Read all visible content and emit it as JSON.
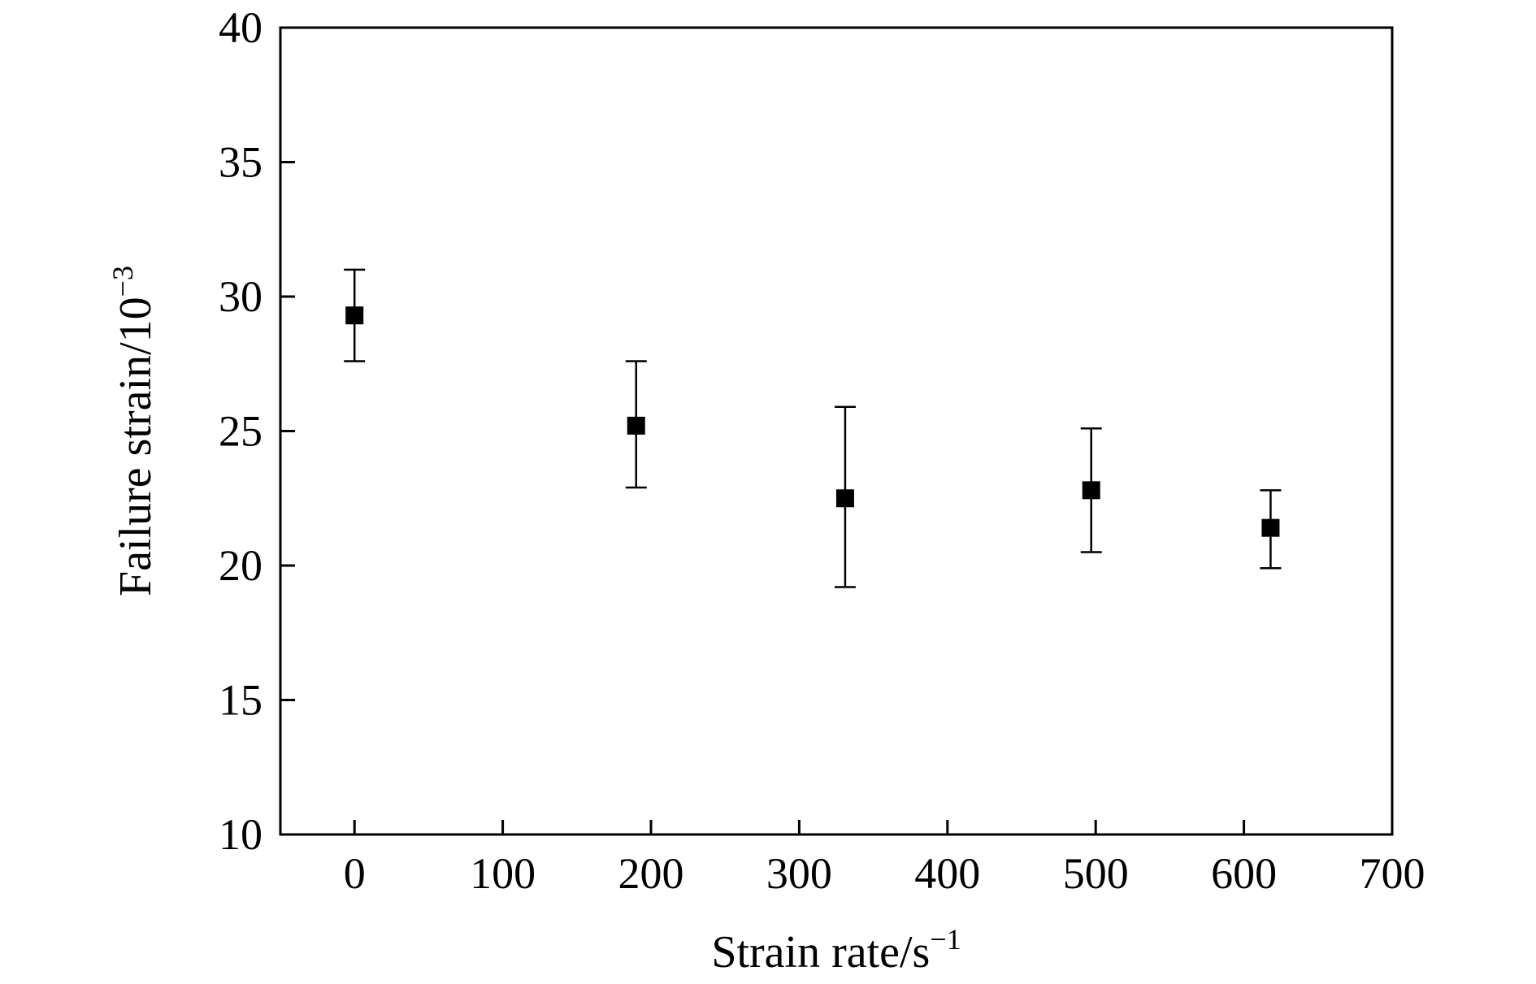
{
  "chart_data": {
    "type": "scatter",
    "title": "",
    "xlabel": "Strain rate/s",
    "xlabel_superscript": "−1",
    "ylabel": "Failure strain/10",
    "ylabel_superscript": "−3",
    "xlim": [
      -50,
      700
    ],
    "ylim": [
      10,
      40
    ],
    "x_ticks": [
      0,
      100,
      200,
      300,
      400,
      500,
      600,
      700
    ],
    "y_ticks": [
      10,
      15,
      20,
      25,
      30,
      35,
      40
    ],
    "grid": false,
    "legend": "none",
    "marker": "square",
    "marker_color": "#000000",
    "points": [
      {
        "x": 0,
        "y": 29.3,
        "err_low": 27.6,
        "err_high": 31.0
      },
      {
        "x": 190,
        "y": 25.2,
        "err_low": 22.9,
        "err_high": 27.6
      },
      {
        "x": 331,
        "y": 22.5,
        "err_low": 19.2,
        "err_high": 25.9
      },
      {
        "x": 497,
        "y": 22.8,
        "err_low": 20.5,
        "err_high": 25.1
      },
      {
        "x": 618,
        "y": 21.4,
        "err_low": 19.9,
        "err_high": 22.8
      }
    ]
  }
}
